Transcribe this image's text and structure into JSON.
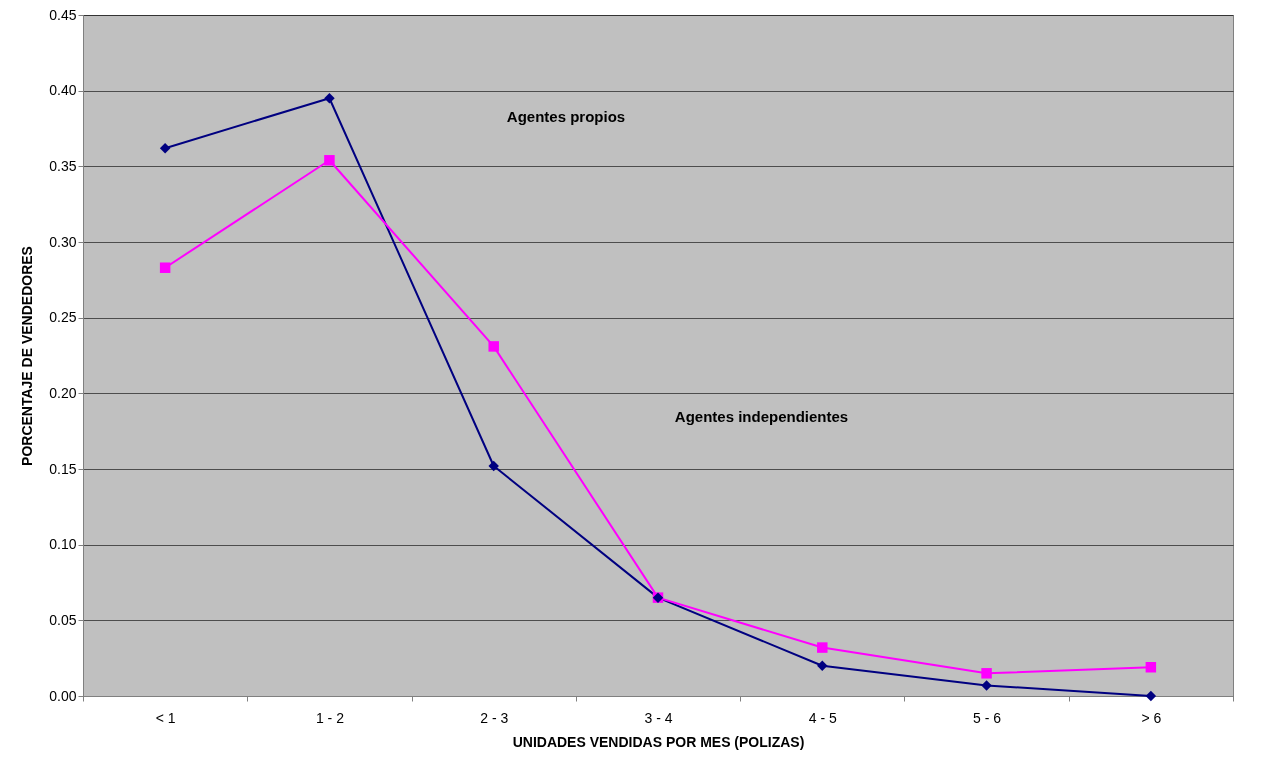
{
  "chart_data": {
    "type": "line",
    "xlabel": "UNIDADES VENDIDAS POR MES (POLIZAS)",
    "ylabel": "PORCENTAJE DE VENDEDORES",
    "categories": [
      "< 1",
      "1 - 2",
      "2 - 3",
      "3 - 4",
      "4 - 5",
      "5 - 6",
      "> 6"
    ],
    "series": [
      {
        "color": "#000080",
        "marker": "diamond",
        "values": [
          0.362,
          0.395,
          0.152,
          0.065,
          0.02,
          0.007,
          0.0
        ]
      },
      {
        "color": "#ff00ff",
        "marker": "square",
        "values": [
          0.283,
          0.354,
          0.231,
          0.065,
          0.032,
          0.015,
          0.019
        ]
      }
    ],
    "annotations": [
      "Agentes propios",
      "Agentes independientes"
    ],
    "ylim": [
      0,
      0.45
    ],
    "yticks": [
      {
        "value": 0,
        "label": "0.00"
      },
      {
        "value": 0.05,
        "label": "0.05"
      },
      {
        "value": 0.1,
        "label": "0.10"
      },
      {
        "value": 0.15,
        "label": "0.15"
      },
      {
        "value": 0.2,
        "label": "0.20"
      },
      {
        "value": 0.25,
        "label": "0.25"
      },
      {
        "value": 0.3,
        "label": "0.30"
      },
      {
        "value": 0.35,
        "label": "0.35"
      },
      {
        "value": 0.4,
        "label": "0.40"
      },
      {
        "value": 0.45,
        "label": "0.45"
      }
    ],
    "grid": "y",
    "legend": false
  }
}
